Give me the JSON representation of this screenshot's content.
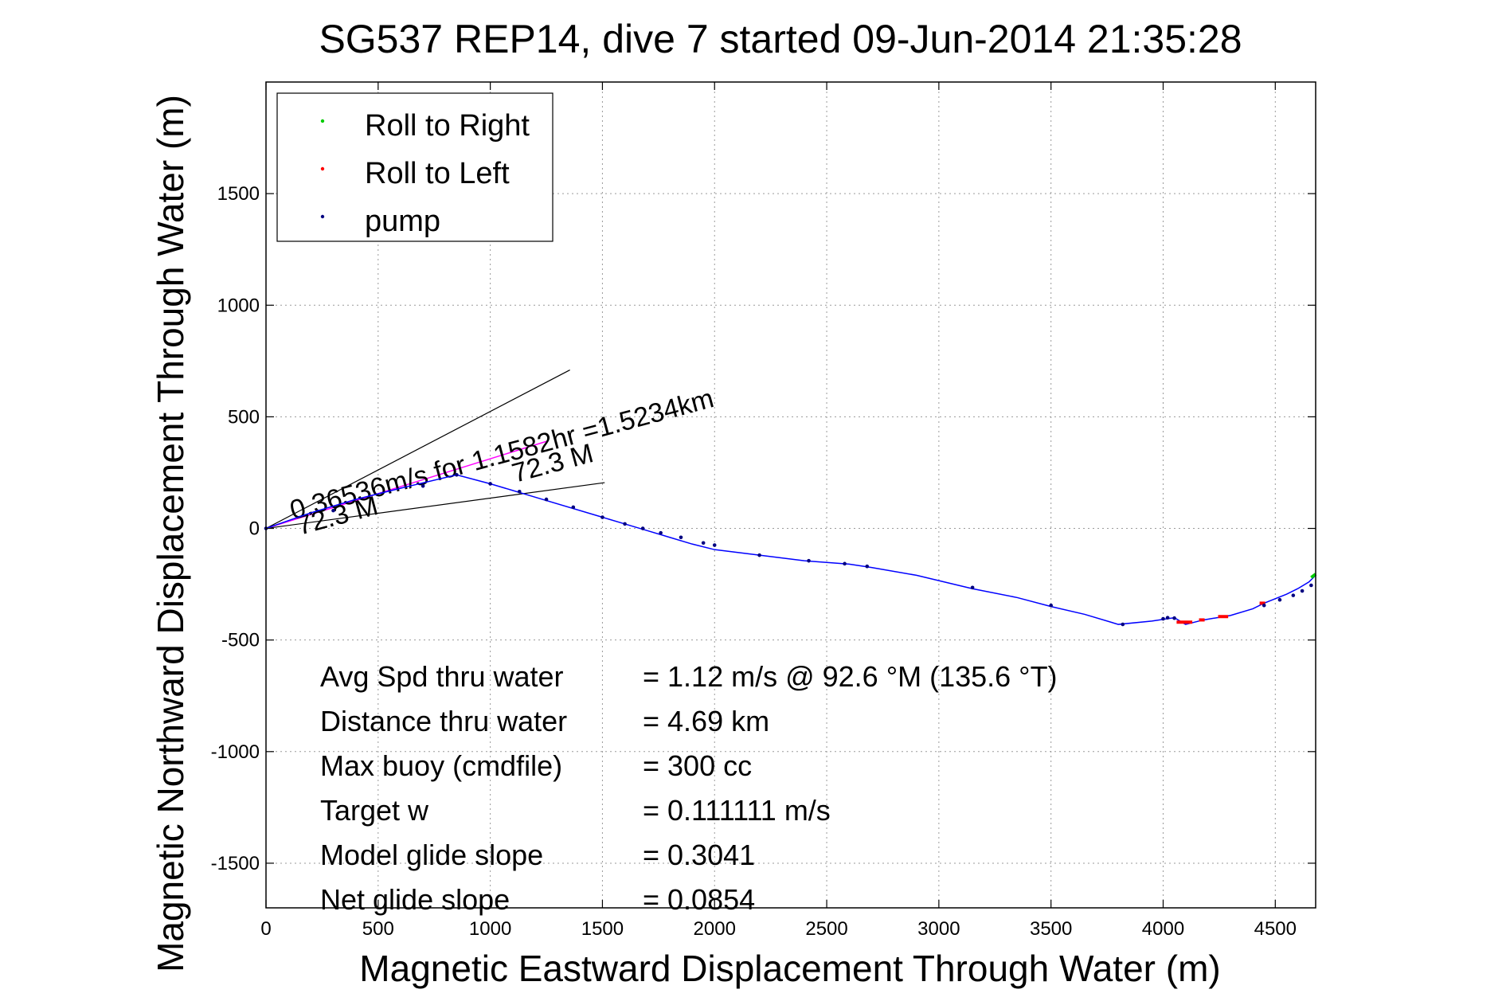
{
  "chart_data": {
    "type": "line",
    "title": "SG537 REP14, dive 7 started 09-Jun-2014 21:35:28",
    "xlabel": "Magnetic Eastward Displacement Through Water (m)",
    "ylabel": "Magnetic Northward Displacement Through Water (m)",
    "xlim": [
      0,
      4680
    ],
    "ylim": [
      -1700,
      2000
    ],
    "xticks": [
      0,
      500,
      1000,
      1500,
      2000,
      2500,
      3000,
      3500,
      4000,
      4500
    ],
    "yticks": [
      -1500,
      -1000,
      -500,
      0,
      500,
      1000,
      1500
    ],
    "grid": true,
    "legend_position": "top-left",
    "legend": [
      {
        "label": "Roll to Right",
        "color": "#00cc00"
      },
      {
        "label": "Roll to Left",
        "color": "#ff0000"
      },
      {
        "label": "pump",
        "color": "#000080"
      }
    ],
    "track": {
      "color": "#0000ff",
      "x": [
        0,
        200,
        400,
        600,
        850,
        1000,
        1100,
        1200,
        1500,
        1600,
        1700,
        1800,
        1900,
        2000,
        2200,
        2400,
        2600,
        2700,
        2900,
        3150,
        3350,
        3500,
        3650,
        3800,
        3950,
        4050,
        4100,
        4180,
        4300,
        4400,
        4450,
        4500,
        4550,
        4600,
        4650,
        4680
      ],
      "y": [
        0,
        70,
        130,
        180,
        240,
        200,
        170,
        140,
        50,
        20,
        -10,
        -40,
        -70,
        -95,
        -120,
        -145,
        -160,
        -175,
        -210,
        -270,
        -310,
        -350,
        -385,
        -430,
        -415,
        -400,
        -430,
        -410,
        -390,
        -360,
        -335,
        -315,
        -295,
        -270,
        -240,
        -210
      ]
    },
    "pump_points": {
      "color": "#000080",
      "x": [
        0,
        300,
        700,
        850,
        1000,
        1130,
        1250,
        1370,
        1500,
        1600,
        1680,
        1760,
        1850,
        1950,
        2000,
        2200,
        2420,
        2580,
        2680,
        3150,
        3500,
        3820,
        4000,
        4020,
        4050,
        4450,
        4520,
        4580,
        4620,
        4660
      ],
      "y": [
        0,
        80,
        190,
        240,
        200,
        165,
        130,
        95,
        50,
        20,
        0,
        -20,
        -40,
        -65,
        -75,
        -120,
        -145,
        -158,
        -170,
        -265,
        -345,
        -430,
        -405,
        -400,
        -402,
        -345,
        -320,
        -300,
        -280,
        -255
      ]
    },
    "roll_left_segments": [
      {
        "x": [
          4060,
          4130
        ],
        "y": [
          -420,
          -420
        ]
      },
      {
        "x": [
          4160,
          4185
        ],
        "y": [
          -410,
          -410
        ]
      },
      {
        "x": [
          4245,
          4290
        ],
        "y": [
          -395,
          -395
        ]
      },
      {
        "x": [
          4430,
          4455
        ],
        "y": [
          -335,
          -335
        ]
      }
    ],
    "roll_right_segments": [
      {
        "x": [
          4660,
          4680
        ],
        "y": [
          -220,
          -205
        ]
      }
    ],
    "heading_lines": {
      "color": "#000000",
      "lines": [
        {
          "x": [
            0,
            1355
          ],
          "y": [
            0,
            710
          ]
        },
        {
          "x": [
            0,
            1510
          ],
          "y": [
            0,
            205
          ]
        }
      ]
    },
    "bearing_line": {
      "color": "#ff00ff",
      "x": [
        0,
        1250
      ],
      "y": [
        0,
        390
      ]
    },
    "annotations": [
      {
        "text": "0.36536m/s for 1.1582hr =1.5234km",
        "x": 120,
        "y": 40,
        "angle": -15
      },
      {
        "text": "72.3 M",
        "x": 150,
        "y": -30,
        "angle": -15
      },
      {
        "text": "72.3 M",
        "x": 1110,
        "y": 205,
        "angle": -15
      }
    ],
    "summary": [
      {
        "label": "Avg Spd thru water",
        "value": "=  1.12 m/s @  92.6 °M (135.6 °T)"
      },
      {
        "label": "Distance thru water",
        "value": "=  4.69 km"
      },
      {
        "label": "Max buoy (cmdfile)",
        "value": "= 300 cc"
      },
      {
        "label": "Target w",
        "value": "= 0.111111 m/s"
      },
      {
        "label": "Model glide slope",
        "value": "= 0.3041"
      },
      {
        "label": "Net glide slope",
        "value": "= 0.0854"
      }
    ]
  }
}
